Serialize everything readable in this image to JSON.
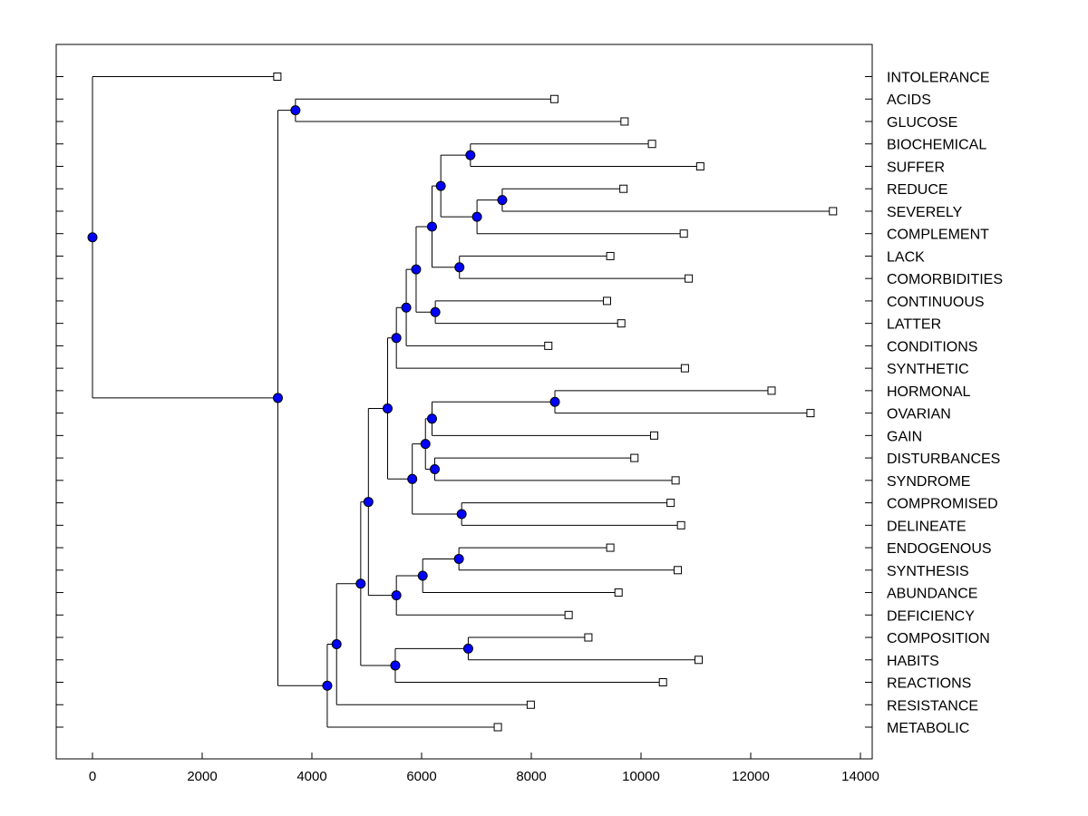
{
  "chart_data": {
    "type": "dendrogram",
    "orientation": "horizontal",
    "xlim": [
      -600,
      14200
    ],
    "xticks": [
      0,
      2000,
      4000,
      6000,
      8000,
      10000,
      12000,
      14000
    ],
    "colors": {
      "node": "#0000ff",
      "line": "#000000",
      "leaf_fill": "#ffffff",
      "frame": "#000000"
    },
    "leaves": [
      {
        "label": "INTOLERANCE",
        "x": 3370
      },
      {
        "label": "ACIDS",
        "x": 8420
      },
      {
        "label": "GLUCOSE",
        "x": 9700
      },
      {
        "label": "BIOCHEMICAL",
        "x": 10200
      },
      {
        "label": "SUFFER",
        "x": 11080
      },
      {
        "label": "REDUCE",
        "x": 9680
      },
      {
        "label": "SEVERELY",
        "x": 13500
      },
      {
        "label": "COMPLEMENT",
        "x": 10780
      },
      {
        "label": "LACK",
        "x": 9440
      },
      {
        "label": "COMORBIDITIES",
        "x": 10870
      },
      {
        "label": "CONTINUOUS",
        "x": 9380
      },
      {
        "label": "LATTER",
        "x": 9640
      },
      {
        "label": "CONDITIONS",
        "x": 8310
      },
      {
        "label": "SYNTHETIC",
        "x": 10800
      },
      {
        "label": "HORMONAL",
        "x": 12380
      },
      {
        "label": "OVARIAN",
        "x": 13090
      },
      {
        "label": "GAIN",
        "x": 10240
      },
      {
        "label": "DISTURBANCES",
        "x": 9880
      },
      {
        "label": "SYNDROME",
        "x": 10630
      },
      {
        "label": "COMPROMISED",
        "x": 10540
      },
      {
        "label": "DELINEATE",
        "x": 10730
      },
      {
        "label": "ENDOGENOUS",
        "x": 9440
      },
      {
        "label": "SYNTHESIS",
        "x": 10670
      },
      {
        "label": "ABUNDANCE",
        "x": 9590
      },
      {
        "label": "DEFICIENCY",
        "x": 8680
      },
      {
        "label": "COMPOSITION",
        "x": 9040
      },
      {
        "label": "HABITS",
        "x": 11050
      },
      {
        "label": "REACTIONS",
        "x": 10400
      },
      {
        "label": "RESISTANCE",
        "x": 7990
      },
      {
        "label": "METABOLIC",
        "x": 7390
      }
    ],
    "merges": [
      {
        "id": "n_ac_gl",
        "x": 3700,
        "children": [
          "L1",
          "L2"
        ]
      },
      {
        "id": "n_bio_suf",
        "x": 6890,
        "children": [
          "L3",
          "L4"
        ]
      },
      {
        "id": "n_red_sev",
        "x": 7470,
        "children": [
          "L5",
          "L6"
        ]
      },
      {
        "id": "n_rs_comp",
        "x": 7010,
        "children": [
          "n_red_sev",
          "L7"
        ]
      },
      {
        "id": "n_bs_rsc",
        "x": 6350,
        "children": [
          "n_bio_suf",
          "n_rs_comp"
        ]
      },
      {
        "id": "n_lack_com",
        "x": 6690,
        "children": [
          "L8",
          "L9"
        ]
      },
      {
        "id": "n_g1",
        "x": 6190,
        "children": [
          "n_bs_rsc",
          "n_lack_com"
        ]
      },
      {
        "id": "n_con_lat",
        "x": 6250,
        "children": [
          "L10",
          "L11"
        ]
      },
      {
        "id": "n_g2",
        "x": 5900,
        "children": [
          "n_g1",
          "n_con_lat"
        ]
      },
      {
        "id": "n_g3",
        "x": 5720,
        "children": [
          "n_g2",
          "L12"
        ]
      },
      {
        "id": "n_g4",
        "x": 5540,
        "children": [
          "n_g3",
          "L13"
        ]
      },
      {
        "id": "n_hor_ova",
        "x": 8430,
        "children": [
          "L14",
          "L15"
        ]
      },
      {
        "id": "n_ho_gain",
        "x": 6190,
        "children": [
          "n_hor_ova",
          "L16"
        ]
      },
      {
        "id": "n_dis_syn",
        "x": 6240,
        "children": [
          "L17",
          "L18"
        ]
      },
      {
        "id": "n_g5",
        "x": 6070,
        "children": [
          "n_ho_gain",
          "n_dis_syn"
        ]
      },
      {
        "id": "n_cmp_del",
        "x": 6730,
        "children": [
          "L19",
          "L20"
        ]
      },
      {
        "id": "n_g6",
        "x": 5830,
        "children": [
          "n_g5",
          "n_cmp_del"
        ]
      },
      {
        "id": "n_g7",
        "x": 5380,
        "children": [
          "n_g4",
          "n_g6"
        ]
      },
      {
        "id": "n_endo_syn",
        "x": 6680,
        "children": [
          "L21",
          "L22"
        ]
      },
      {
        "id": "n_es_abu",
        "x": 6020,
        "children": [
          "n_endo_syn",
          "L23"
        ]
      },
      {
        "id": "n_esa_def",
        "x": 5540,
        "children": [
          "n_es_abu",
          "L24"
        ]
      },
      {
        "id": "n_g8",
        "x": 5030,
        "children": [
          "n_g7",
          "n_esa_def"
        ]
      },
      {
        "id": "n_cmpo_hab",
        "x": 6850,
        "children": [
          "L25",
          "L26"
        ]
      },
      {
        "id": "n_ch_rea",
        "x": 5520,
        "children": [
          "n_cmpo_hab",
          "L27"
        ]
      },
      {
        "id": "n_g9",
        "x": 4890,
        "children": [
          "n_g8",
          "n_ch_rea"
        ]
      },
      {
        "id": "n_g10",
        "x": 4450,
        "children": [
          "n_g9",
          "L28"
        ]
      },
      {
        "id": "n_g11",
        "x": 4280,
        "children": [
          "n_g10",
          "L29"
        ]
      },
      {
        "id": "n_g12",
        "x": 3380,
        "children": [
          "n_ac_gl",
          "n_g11"
        ]
      },
      {
        "id": "n_root",
        "x": 0,
        "children": [
          "L0",
          "n_g12"
        ]
      }
    ]
  }
}
